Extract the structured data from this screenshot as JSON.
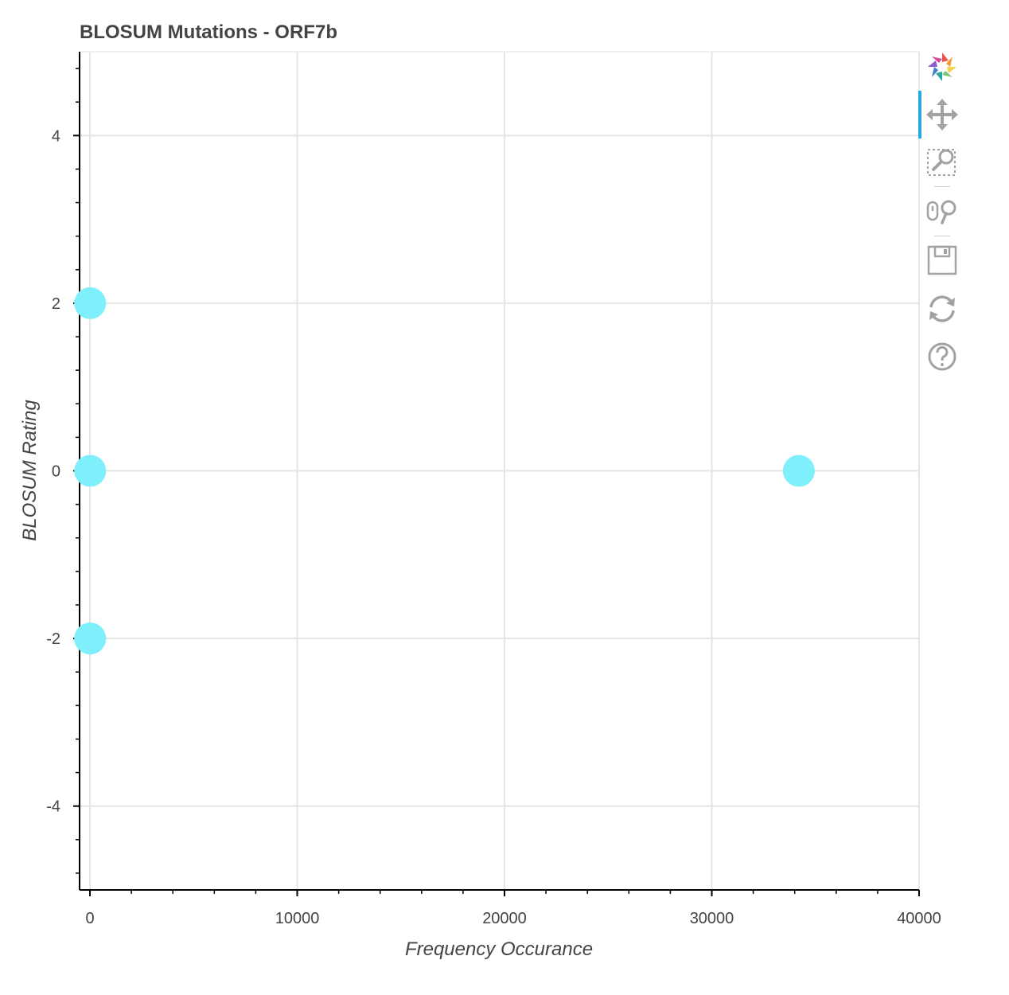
{
  "chart_data": {
    "type": "scatter",
    "title": "BLOSUM Mutations - ORF7b",
    "xlabel": "Frequency Occurance",
    "ylabel": "BLOSUM Rating",
    "xlim": [
      -500,
      40000
    ],
    "ylim": [
      -5,
      5
    ],
    "xticks": [
      0,
      10000,
      20000,
      30000,
      40000
    ],
    "xtick_labels": [
      "0",
      "10000",
      "20000",
      "30000",
      "40000"
    ],
    "yticks": [
      -4,
      -2,
      0,
      2,
      4
    ],
    "ytick_labels": [
      "-4",
      "-2",
      "0",
      "2",
      "4"
    ],
    "grid": true,
    "point_color": "#7ff0fb",
    "points": [
      {
        "x": 10,
        "y": 2
      },
      {
        "x": 10,
        "y": 0
      },
      {
        "x": 10,
        "y": -2
      },
      {
        "x": 34200,
        "y": 0
      }
    ]
  },
  "toolbar": {
    "tools": [
      "bokeh-logo-icon",
      "pan-icon",
      "box-zoom-icon",
      "wheel-zoom-icon",
      "save-icon",
      "reset-icon",
      "help-icon"
    ],
    "active_color": "#26aae1"
  }
}
